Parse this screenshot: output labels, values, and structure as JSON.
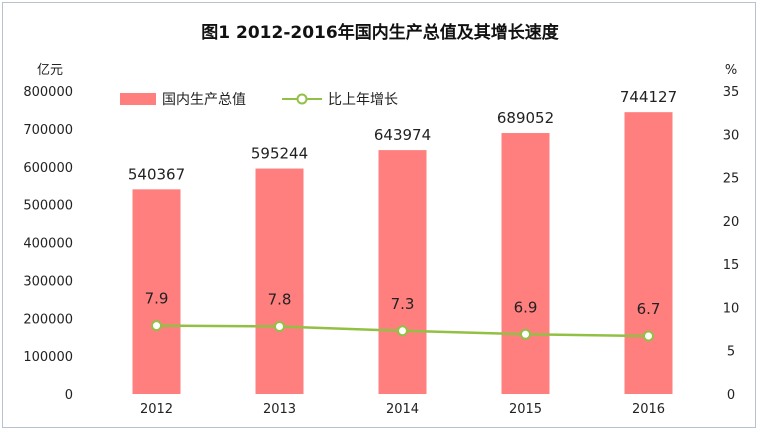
{
  "chart_data": {
    "type": "bar",
    "title": "图1    2012-2016年国内生产总值及其增长速度",
    "categories": [
      "2012",
      "2013",
      "2014",
      "2015",
      "2016"
    ],
    "series": [
      {
        "name": "国内生产总值",
        "type": "bar",
        "axis": "left",
        "color": "#ff7f7f",
        "values": [
          540367,
          595244,
          643974,
          689052,
          744127
        ],
        "labels": [
          "540367",
          "595244",
          "643974",
          "689052",
          "744127"
        ]
      },
      {
        "name": "比上年增长",
        "type": "line",
        "axis": "right",
        "color": "#92c045",
        "values": [
          7.9,
          7.8,
          7.3,
          6.9,
          6.7
        ],
        "labels": [
          "7.9",
          "7.8",
          "7.3",
          "6.9",
          "6.7"
        ]
      }
    ],
    "left_axis": {
      "unit": "亿元",
      "ylim": [
        0,
        800000
      ],
      "ticks": [
        0,
        100000,
        200000,
        300000,
        400000,
        500000,
        600000,
        700000,
        800000
      ],
      "tick_labels": [
        "0",
        "100000",
        "200000",
        "300000",
        "400000",
        "500000",
        "600000",
        "700000",
        "800000"
      ]
    },
    "right_axis": {
      "unit": "%",
      "ylim": [
        0,
        35
      ],
      "ticks": [
        0,
        5,
        10,
        15,
        20,
        25,
        30,
        35
      ],
      "tick_labels": [
        "0",
        "5",
        "10",
        "15",
        "20",
        "25",
        "30",
        "35"
      ]
    },
    "grid": false,
    "legend_position": "top-left"
  }
}
